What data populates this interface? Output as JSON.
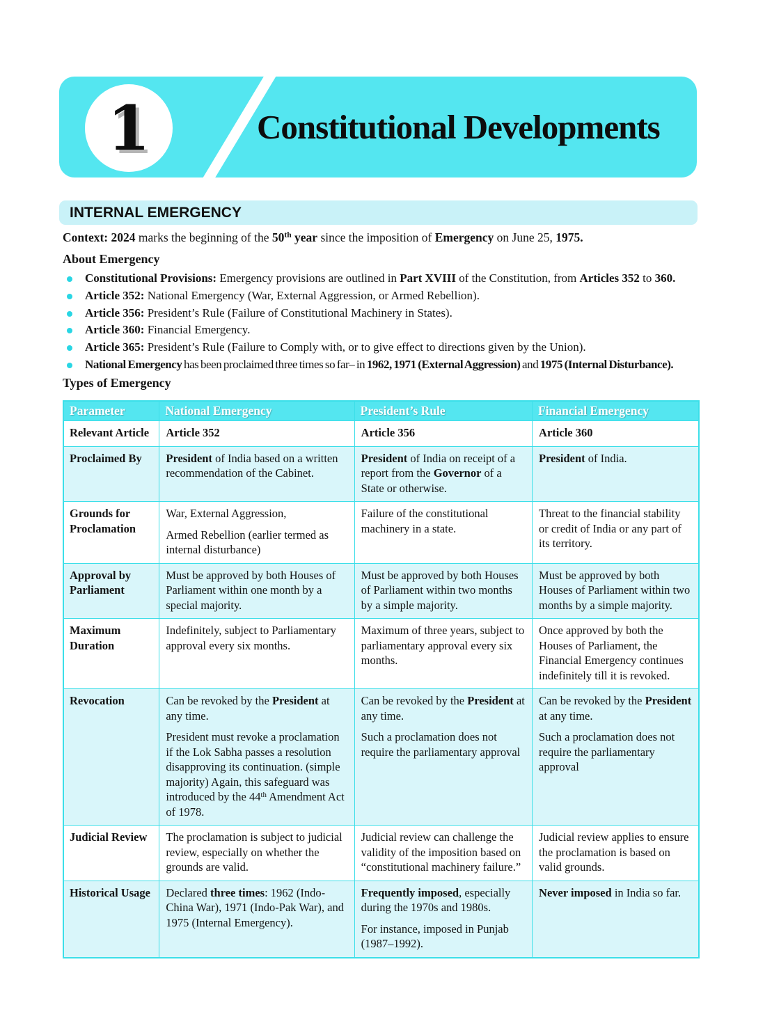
{
  "chapter": {
    "number": "1",
    "title": "Constitutional Developments"
  },
  "section": {
    "title": "INTERNAL EMERGENCY"
  },
  "context": {
    "text": "**Context: 2024** marks the beginning of the **50^th^ year** since the imposition of **Emergency** on June 25, **1975.**"
  },
  "about": {
    "heading": "About Emergency",
    "bullets": [
      "**Constitutional Provisions:** Emergency provisions are outlined in **Part XVIII** of the Constitution, from **Articles 352** to **360.**",
      "**Article 352:** National Emergency (War, External Aggression, or Armed Rebellion).",
      "**Article 356:** President’s Rule (Failure of Constitutional Machinery in States).",
      "**Article 360:** Financial Emergency.",
      "**Article 365:** President’s Rule (Failure to Comply with, or to give effect to directions given by the Union).",
      "**National Emergency** has been proclaimed three times so far– in **1962, 1971 (External Aggression)** and **1975 (Internal Disturbance).**"
    ]
  },
  "types": {
    "heading": "Types of Emergency",
    "table": {
      "headers": [
        "Parameter",
        "National Emergency",
        "President’s Rule",
        "Financial Emergency"
      ],
      "rows": [
        {
          "param": "Relevant Article",
          "cells": [
            [
              "**Article 352**"
            ],
            [
              "**Article 356**"
            ],
            [
              "**Article 360**"
            ]
          ]
        },
        {
          "param": "Proclaimed By",
          "cells": [
            [
              "**President** of India based on a written recommendation of the Cabinet."
            ],
            [
              "**President** of India on receipt of a report from the **Governor** of a State or otherwise."
            ],
            [
              "**President** of India."
            ]
          ]
        },
        {
          "param": "Grounds for Proclamation",
          "cells": [
            [
              "War, External Aggression,",
              "Armed Rebellion (earlier termed as internal disturbance)"
            ],
            [
              "Failure of the constitutional machinery in a state."
            ],
            [
              "Threat to the financial stability or credit of India or any part of its territory."
            ]
          ]
        },
        {
          "param": "Approval by Parliament",
          "cells": [
            [
              "Must be approved by both Houses of Parliament within one month by a special majority."
            ],
            [
              "Must be approved by both Houses of Parliament within two months by a simple majority."
            ],
            [
              "Must be approved by both Houses of Parliament within two months by a simple majority."
            ]
          ]
        },
        {
          "param": "Maximum Duration",
          "cells": [
            [
              "Indefinitely, subject to Parliamentary approval every six months."
            ],
            [
              "Maximum of three years, subject to parliamentary approval every six months."
            ],
            [
              "Once approved by both the Houses of Parliament, the Financial Emergency continues indefinitely till it is revoked."
            ]
          ]
        },
        {
          "param": "Revocation",
          "cells": [
            [
              "Can be revoked by the **President** at any time.",
              "President must revoke a proclamation if the Lok Sabha passes a resolution disapproving its continuation. (simple majority) Again, this safeguard was introduced by the 44^th^ Amendment Act of 1978."
            ],
            [
              "Can be revoked by the **President** at any time.",
              "Such a proclamation does not require the parliamentary approval"
            ],
            [
              "Can be revoked by the **President** at any time.",
              "Such a proclamation does not require the parliamentary approval"
            ]
          ]
        },
        {
          "param": "Judicial Review",
          "cells": [
            [
              "The proclamation is subject to judicial review, especially on whether the grounds are valid."
            ],
            [
              "Judicial review can challenge the validity of the imposition based on “constitutional machinery failure.”"
            ],
            [
              "Judicial review applies to ensure the proclamation is based on valid grounds."
            ]
          ]
        },
        {
          "param": "Historical Usage",
          "cells": [
            [
              "Declared **three times**: 1962 (Indo-China War), 1971 (Indo-Pak War), and 1975 (Internal Emergency)."
            ],
            [
              "**Frequently imposed**, especially during the 1970s and 1980s.",
              "For instance, imposed in Punjab (1987–1992)."
            ],
            [
              "**Never imposed** in India so far."
            ]
          ]
        }
      ]
    }
  },
  "colors": {
    "accent_cyan": "#54e6f0",
    "banner_light": "#c9f2f8",
    "row_light": "#d9f6fa",
    "border_cyan": "#3cdfe9",
    "bullet_cyan": "#29d6e4"
  }
}
